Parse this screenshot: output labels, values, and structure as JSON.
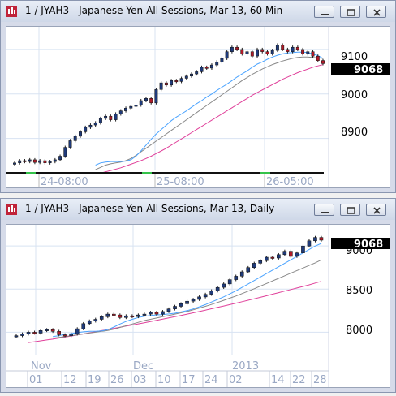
{
  "windows": [
    {
      "title": "1 / JYAH3 - Japanese Yen-All Sessions, Mar 13, 60 Min",
      "last_price": "9068",
      "y_ticks": [
        "9100",
        "9000",
        "8900"
      ],
      "time_labels": [
        "24-08:00",
        "25-08:00",
        "26-05:00"
      ],
      "chart_data": {
        "type": "candlestick",
        "instrument": "JYAH3",
        "interval": "60 Min",
        "ylim": [
          8830,
          9140
        ],
        "y_ticks": [
          8900,
          9000,
          9100
        ],
        "last_price": 9068,
        "candles_approx_close": [
          8845,
          8850,
          8848,
          8852,
          8846,
          8850,
          8845,
          8848,
          8852,
          8860,
          8880,
          8895,
          8905,
          8915,
          8925,
          8930,
          8935,
          8945,
          8950,
          8942,
          8955,
          8962,
          8968,
          8972,
          8975,
          8985,
          8990,
          8980,
          9010,
          9025,
          9020,
          9030,
          9028,
          9035,
          9040,
          9045,
          9050,
          9060,
          9058,
          9065,
          9072,
          9080,
          9095,
          9105,
          9100,
          9090,
          9095,
          9085,
          9100,
          9095,
          9090,
          9098,
          9110,
          9100,
          9095,
          9105,
          9100,
          9090,
          9095,
          9085,
          9075,
          9068
        ],
        "ma_fast_approx": [
          8840,
          8845,
          8847,
          8848,
          8848,
          8848,
          8849,
          8852,
          8860,
          8872,
          8885,
          8898,
          8910,
          8920,
          8930,
          8940,
          8948,
          8955,
          8962,
          8970,
          8978,
          8985,
          8993,
          9000,
          9008,
          9015,
          9022,
          9030,
          9038,
          9045,
          9052,
          9060,
          9067,
          9072,
          9078,
          9083,
          9087,
          9090,
          9092,
          9093,
          9094,
          9094,
          9093,
          9090,
          9086,
          9080
        ],
        "ma_slow_approx": [
          8830,
          8835,
          8840,
          8843,
          8845,
          8847,
          8850,
          8855,
          8862,
          8870,
          8878,
          8886,
          8894,
          8902,
          8910,
          8918,
          8926,
          8934,
          8942,
          8950,
          8958,
          8966,
          8974,
          8982,
          8990,
          8998,
          9006,
          9014,
          9022,
          9030,
          9037,
          9044,
          9050,
          9056,
          9061,
          9066,
          9070,
          9074,
          9077,
          9080,
          9082,
          9083,
          9083,
          9082,
          9081,
          9080
        ],
        "ma_long_approx": [
          8820,
          8822,
          8825,
          8828,
          8831,
          8834,
          8838,
          8842,
          8846,
          8850,
          8855,
          8860,
          8866,
          8872,
          8878,
          8885,
          8892,
          8899,
          8906,
          8913,
          8920,
          8927,
          8934,
          8941,
          8948,
          8955,
          8962,
          8969,
          8976,
          8983,
          8990,
          8997,
          9003,
          9009,
          9015,
          9021,
          9027,
          9033,
          9038,
          9043,
          9048,
          9052,
          9056,
          9060,
          9063,
          9066
        ]
      }
    },
    {
      "title": "1 / JYAH3 - Japanese Yen-All Sessions, Mar 13, Daily",
      "last_price": "9068",
      "y_ticks": [
        "9000",
        "8500",
        "8000"
      ],
      "month_labels": [
        "Nov",
        "Dec",
        "2013"
      ],
      "day_labels": [
        "01",
        "12",
        "19",
        "26",
        "03",
        "10",
        "17",
        "24",
        "02",
        "14",
        "22",
        "28"
      ],
      "chart_data": {
        "type": "candlestick",
        "instrument": "JYAH3",
        "interval": "Daily",
        "ylim": [
          7740,
          9190
        ],
        "y_ticks": [
          8000,
          8500,
          9000
        ],
        "last_price": 9068,
        "candles_approx_close": [
          7960,
          7980,
          8000,
          7990,
          8020,
          8030,
          8010,
          7970,
          7960,
          7980,
          8040,
          8100,
          8130,
          8150,
          8180,
          8210,
          8200,
          8170,
          8190,
          8180,
          8200,
          8210,
          8230,
          8210,
          8240,
          8270,
          8300,
          8330,
          8360,
          8380,
          8410,
          8440,
          8480,
          8520,
          8560,
          8610,
          8650,
          8700,
          8750,
          8800,
          8830,
          8870,
          8860,
          8900,
          8940,
          8880,
          8920,
          9000,
          9060,
          9100,
          9068
        ],
        "ma_fast_approx": [
          7950,
          7960,
          7975,
          7985,
          7995,
          8005,
          8010,
          8010,
          8015,
          8030,
          8060,
          8095,
          8125,
          8150,
          8170,
          8185,
          8195,
          8200,
          8205,
          8212,
          8220,
          8235,
          8250,
          8270,
          8295,
          8320,
          8350,
          8380,
          8410,
          8445,
          8480,
          8520,
          8560,
          8600,
          8640,
          8680,
          8720,
          8760,
          8800,
          8840,
          8880,
          8920,
          8960,
          9000,
          9030
        ],
        "ma_slow_approx": [
          7930,
          7940,
          7950,
          7960,
          7970,
          7980,
          7990,
          8000,
          8010,
          8020,
          8035,
          8055,
          8075,
          8095,
          8115,
          8135,
          8150,
          8165,
          8180,
          8195,
          8210,
          8225,
          8240,
          8260,
          8280,
          8300,
          8322,
          8345,
          8370,
          8395,
          8420,
          8448,
          8476,
          8505,
          8535,
          8565,
          8595,
          8625,
          8655,
          8685,
          8715,
          8745,
          8775,
          8805,
          8840
        ],
        "ma_long_approx": [
          7880,
          7890,
          7900,
          7910,
          7920,
          7932,
          7944,
          7956,
          7968,
          7980,
          7993,
          8006,
          8019,
          8032,
          8045,
          8058,
          8071,
          8084,
          8097,
          8110,
          8124,
          8138,
          8152,
          8166,
          8180,
          8195,
          8210,
          8225,
          8240,
          8256,
          8272,
          8288,
          8304,
          8320,
          8337,
          8354,
          8371,
          8388,
          8405,
          8423,
          8441,
          8459,
          8477,
          8495,
          8513,
          8531,
          8550,
          8570,
          8590
        ]
      }
    }
  ],
  "colors": {
    "up_candle": "#1f3a7a",
    "down_candle": "#b01a28",
    "ma_fast": "#4aa3ff",
    "ma_slow": "#888888",
    "ma_long": "#e0409a",
    "price_tag_bg": "#000000",
    "grid": "#d8e3f2"
  },
  "icons": [
    "app-chart-icon",
    "minimize-icon",
    "restore-icon",
    "close-icon"
  ]
}
